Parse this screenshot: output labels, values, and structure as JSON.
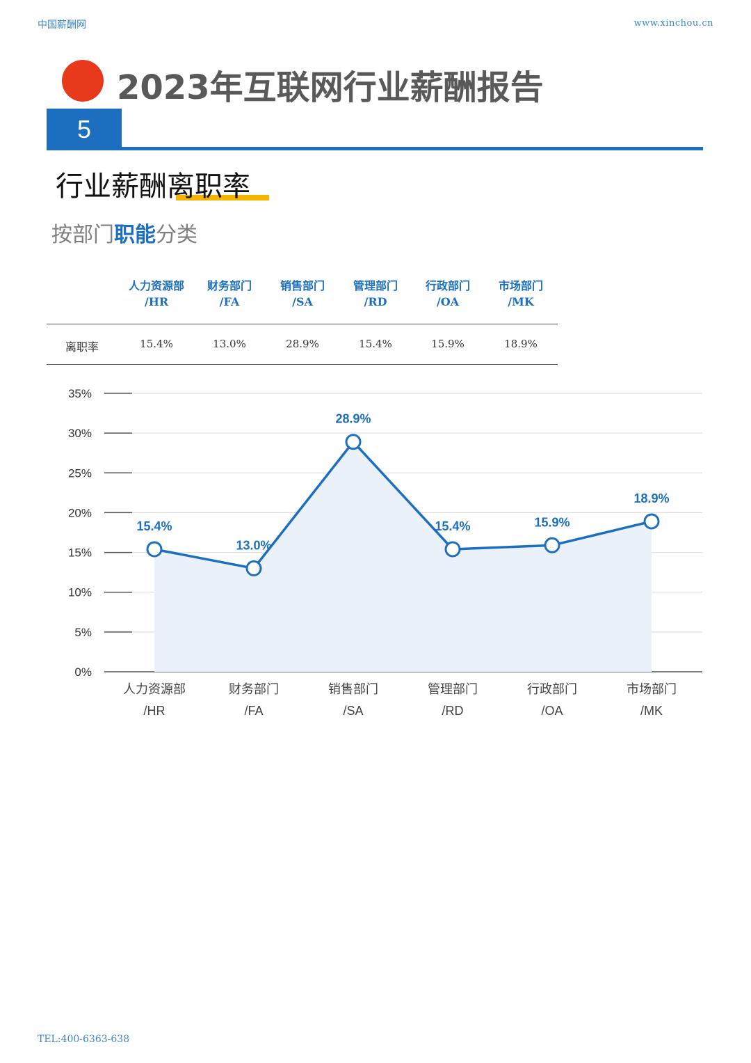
{
  "header": {
    "site_name": "中国薪酬网",
    "site_url": "www.xinchou.cn"
  },
  "report_title": "2023年互联网行业薪酬报告",
  "section_number": "5",
  "heading": "行业薪酬离职率",
  "subheading": {
    "prefix": "按部门",
    "bold": "职能",
    "suffix": "分类"
  },
  "table": {
    "row_label": "离职率",
    "columns": [
      {
        "line1": "人力资源部",
        "line2": "/HR",
        "value": "15.4%"
      },
      {
        "line1": "财务部门",
        "line2": "/FA",
        "value": "13.0%"
      },
      {
        "line1": "销售部门",
        "line2": "/SA",
        "value": "28.9%"
      },
      {
        "line1": "管理部门",
        "line2": "/RD",
        "value": "15.4%"
      },
      {
        "line1": "行政部门",
        "line2": "/OA",
        "value": "15.9%"
      },
      {
        "line1": "市场部门",
        "line2": "/MK",
        "value": "18.9%"
      }
    ]
  },
  "chart_data": {
    "type": "line",
    "categories": [
      [
        "人力资源部",
        "/HR"
      ],
      [
        "财务部门",
        "/FA"
      ],
      [
        "销售部门",
        "/SA"
      ],
      [
        "管理部门",
        "/RD"
      ],
      [
        "行政部门",
        "/OA"
      ],
      [
        "市场部门",
        "/MK"
      ]
    ],
    "values": [
      15.4,
      13.0,
      28.9,
      15.4,
      15.9,
      18.9
    ],
    "data_labels": [
      "15.4%",
      "13.0%",
      "28.9%",
      "15.4%",
      "15.9%",
      "18.9%"
    ],
    "y_ticks": [
      "0%",
      "5%",
      "10%",
      "15%",
      "20%",
      "25%",
      "30%",
      "35%"
    ],
    "ylim": [
      0,
      35
    ],
    "grid": true,
    "area_fill": true,
    "colors": {
      "line": "#1c6fbf",
      "area": "#eaf1f9",
      "label": "#1c6fbf"
    }
  },
  "footer": {
    "tel": "TEL:400-6363-638"
  }
}
